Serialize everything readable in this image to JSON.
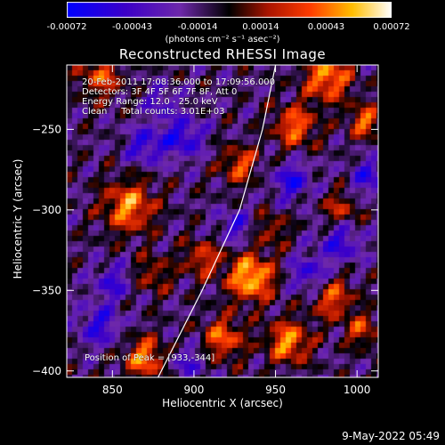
{
  "chart_data": {
    "type": "heatmap",
    "title": "Reconstructed RHESSI Image",
    "xlabel": "Heliocentric X (arcsec)",
    "ylabel": "Heliocentric Y (arcsec)",
    "xlim": [
      822,
      1013
    ],
    "ylim": [
      -404,
      -210
    ],
    "x_ticks": [
      850,
      900,
      950,
      1000
    ],
    "y_ticks": [
      -250,
      -300,
      -350,
      -400
    ],
    "colorbar": {
      "range": [
        -0.00072,
        0.00072
      ],
      "tick_values": [
        -0.00072,
        -0.00043,
        -0.00014,
        0.00014,
        0.00043,
        0.00072
      ],
      "tick_labels": [
        "-0.00072",
        "-0.00043",
        "-0.00014",
        "0.00014",
        "0.00043",
        "0.00072"
      ],
      "units": "(photons cm⁻² s⁻¹ asec⁻²)"
    },
    "annotations": [
      "20-Feb-2011 17:08:36.000 to 17:09:56.000",
      "Detectors: 3F 4F 5F 6F 7F 8F, Att 0",
      "Energy Range: 12.0 - 25.0 keV",
      "Clean     Total counts: 3.01E+03"
    ],
    "peak_label": "Position of Peak = [933,-344]",
    "peak": [
      933,
      -344
    ],
    "limb_curve": [
      [
        878,
        -404
      ],
      [
        905,
        -350
      ],
      [
        928,
        -300
      ],
      [
        942,
        -250
      ],
      [
        950,
        -210
      ]
    ],
    "blobs": [
      {
        "x": 935,
        "y": -342,
        "a": 0.00072,
        "r": 10
      },
      {
        "x": 860,
        "y": -298,
        "a": 0.00058,
        "r": 11
      },
      {
        "x": 870,
        "y": -392,
        "a": 0.00055,
        "r": 9
      },
      {
        "x": 928,
        "y": -272,
        "a": 0.00045,
        "r": 8
      },
      {
        "x": 962,
        "y": -248,
        "a": 0.00052,
        "r": 9
      },
      {
        "x": 982,
        "y": -218,
        "a": 0.0006,
        "r": 10
      },
      {
        "x": 1005,
        "y": -245,
        "a": 0.0005,
        "r": 7
      },
      {
        "x": 843,
        "y": -218,
        "a": 0.00045,
        "r": 9
      },
      {
        "x": 905,
        "y": -330,
        "a": 0.0004,
        "r": 8
      },
      {
        "x": 918,
        "y": -380,
        "a": 0.0005,
        "r": 9
      },
      {
        "x": 958,
        "y": -382,
        "a": 0.0006,
        "r": 9
      },
      {
        "x": 985,
        "y": -355,
        "a": 0.00045,
        "r": 9
      },
      {
        "x": 1003,
        "y": -375,
        "a": 0.0004,
        "r": 7
      },
      {
        "x": 990,
        "y": -300,
        "a": 0.00035,
        "r": 8
      },
      {
        "x": 875,
        "y": -340,
        "a": 0.0003,
        "r": 8
      },
      {
        "x": 948,
        "y": -312,
        "a": 0.0003,
        "r": 7
      },
      {
        "x": 893,
        "y": -255,
        "a": -0.00045,
        "r": 9
      },
      {
        "x": 870,
        "y": -260,
        "a": -0.0004,
        "r": 8
      },
      {
        "x": 960,
        "y": -282,
        "a": -0.00045,
        "r": 8
      },
      {
        "x": 990,
        "y": -320,
        "a": -0.0004,
        "r": 9
      },
      {
        "x": 850,
        "y": -345,
        "a": -0.00035,
        "r": 8
      },
      {
        "x": 842,
        "y": -372,
        "a": -0.0004,
        "r": 9
      },
      {
        "x": 925,
        "y": -310,
        "a": -0.00035,
        "r": 7
      },
      {
        "x": 970,
        "y": -340,
        "a": -0.0004,
        "r": 8
      },
      {
        "x": 896,
        "y": -395,
        "a": -0.0003,
        "r": 8
      },
      {
        "x": 1008,
        "y": -280,
        "a": -0.0004,
        "r": 8
      },
      {
        "x": 880,
        "y": -233,
        "a": -0.0003,
        "r": 7
      }
    ]
  },
  "footer": "9-May-2022 05:49"
}
